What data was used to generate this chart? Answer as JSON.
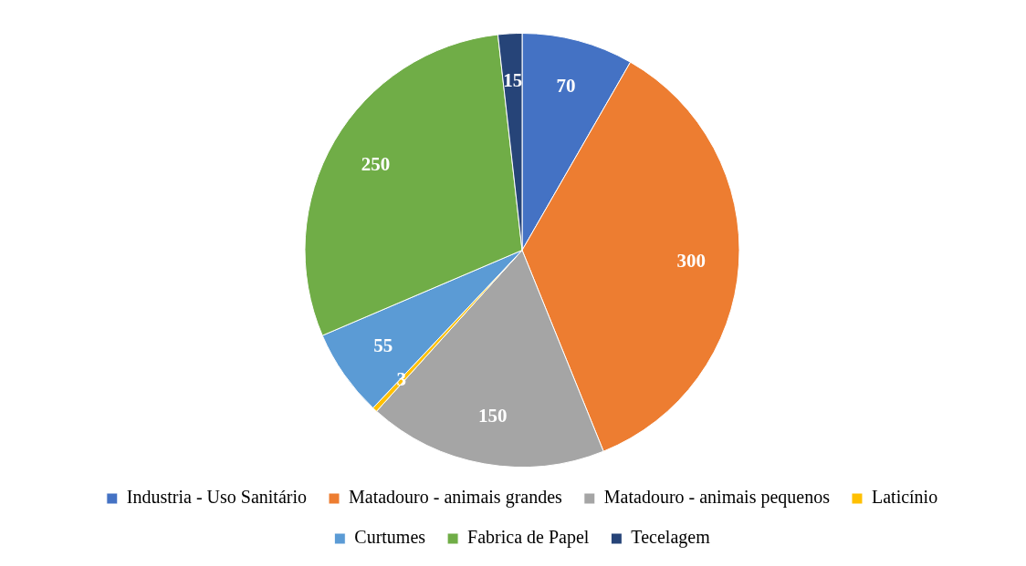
{
  "chart_data": {
    "type": "pie",
    "categories": [
      "Industria - Uso Sanitário",
      "Matadouro - animais grandes",
      "Matadouro - animais pequenos",
      "Laticínio",
      "Curtumes",
      "Fabrica de Papel",
      "Tecelagem"
    ],
    "values": [
      70,
      300,
      150,
      3,
      55,
      250,
      15
    ],
    "colors": [
      "#4472c4",
      "#ed7d31",
      "#a5a5a5",
      "#ffc000",
      "#5b9bd5",
      "#70ad47",
      "#264478"
    ],
    "data_labels": true,
    "legend": "bottom"
  }
}
